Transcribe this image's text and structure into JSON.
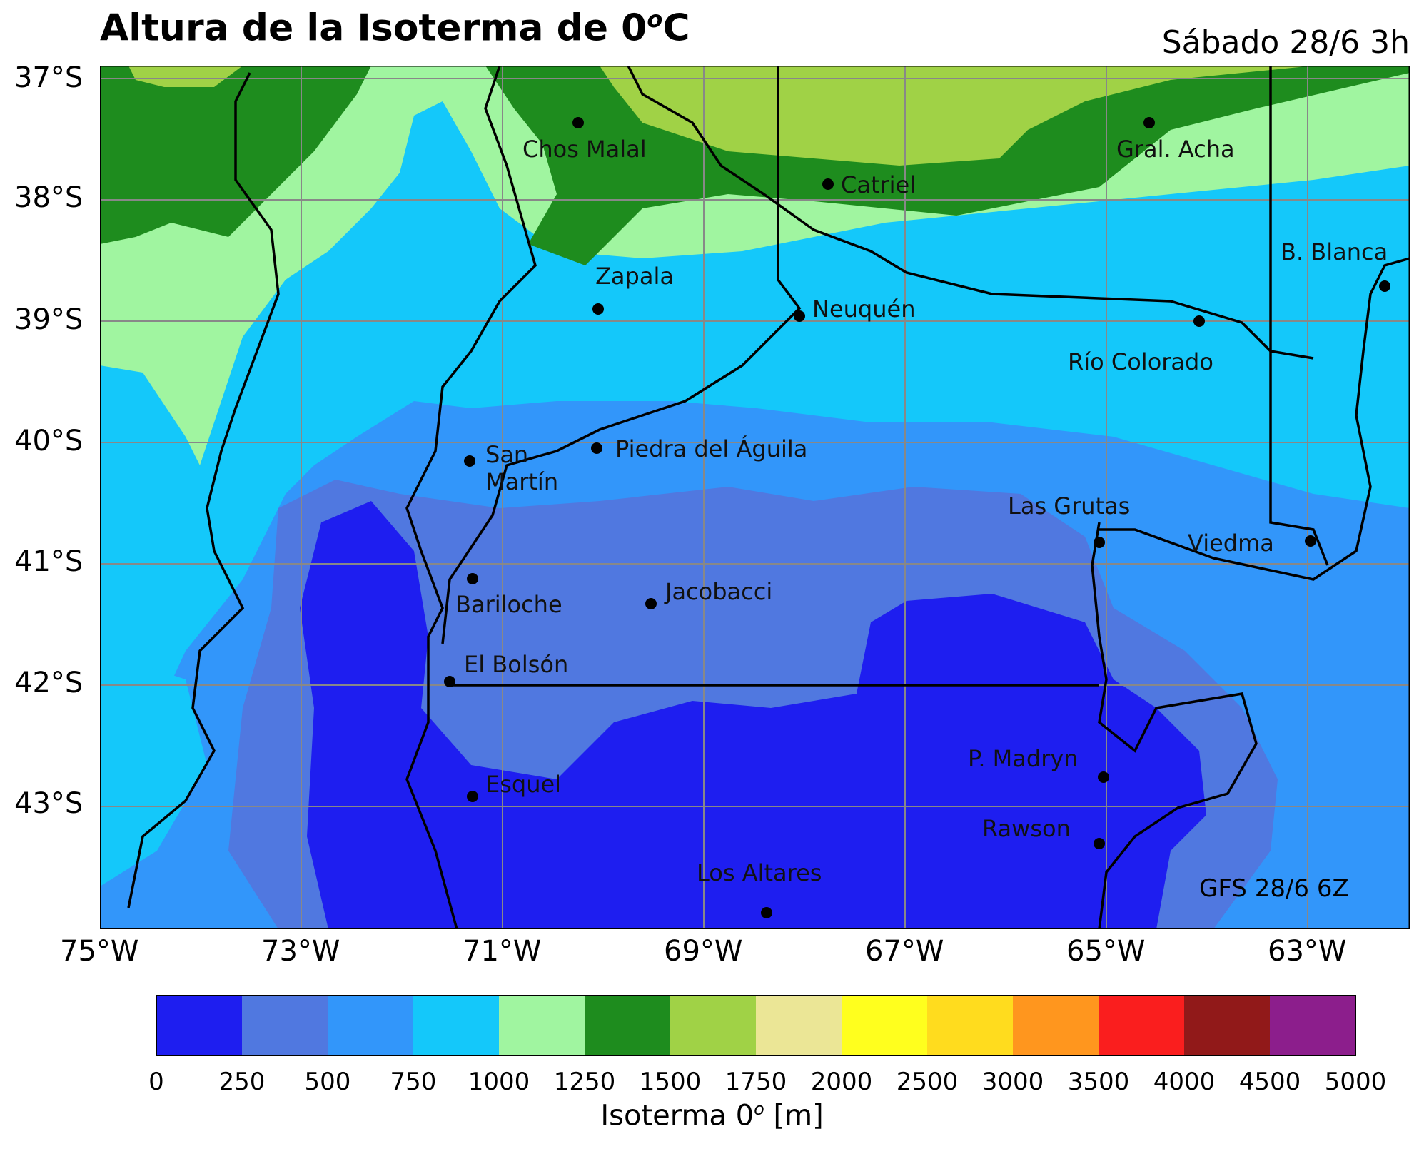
{
  "title": {
    "text": "Altura de la Isoterma de 0",
    "sup": "o",
    "suffix": "C"
  },
  "subtitle": "Sábado 28/6 3h",
  "model_run": "GFS 28/6 6Z",
  "axes": {
    "lat_labels": [
      "37°S",
      "38°S",
      "39°S",
      "40°S",
      "41°S",
      "42°S",
      "43°S"
    ],
    "lon_labels": [
      "75°W",
      "73°W",
      "71°W",
      "69°W",
      "67°W",
      "65°W",
      "63°W"
    ]
  },
  "cities": [
    {
      "name": "Chos Malal"
    },
    {
      "name": "Gral. Acha"
    },
    {
      "name": "Catriel"
    },
    {
      "name": "Zapala"
    },
    {
      "name": "Neuquén"
    },
    {
      "name": "B. Blanca"
    },
    {
      "name": "Río Colorado"
    },
    {
      "name": "San"
    },
    {
      "name": "Martín"
    },
    {
      "name": "Piedra del Águila"
    },
    {
      "name": "Las Grutas"
    },
    {
      "name": "Viedma"
    },
    {
      "name": "Bariloche"
    },
    {
      "name": "Jacobacci"
    },
    {
      "name": "El Bolsón"
    },
    {
      "name": "P. Madryn"
    },
    {
      "name": "Esquel"
    },
    {
      "name": "Rawson"
    },
    {
      "name": "Los Altares"
    }
  ],
  "colorbar": {
    "ticks": [
      "0",
      "250",
      "500",
      "750",
      "1000",
      "1250",
      "1500",
      "1750",
      "2000",
      "2500",
      "3000",
      "3500",
      "4000",
      "4500",
      "5000"
    ],
    "colors": [
      "#1e1ef0",
      "#5078e0",
      "#3296fa",
      "#14c8fa",
      "#a0f5a0",
      "#1e8c1e",
      "#a0d246",
      "#ebe696",
      "#ffff1e",
      "#ffdc1e",
      "#ff961e",
      "#fa1e1e",
      "#911919",
      "#8c1e8c"
    ],
    "label_text": "Isoterma 0",
    "label_sup": "o",
    "label_unit": " [m]"
  }
}
